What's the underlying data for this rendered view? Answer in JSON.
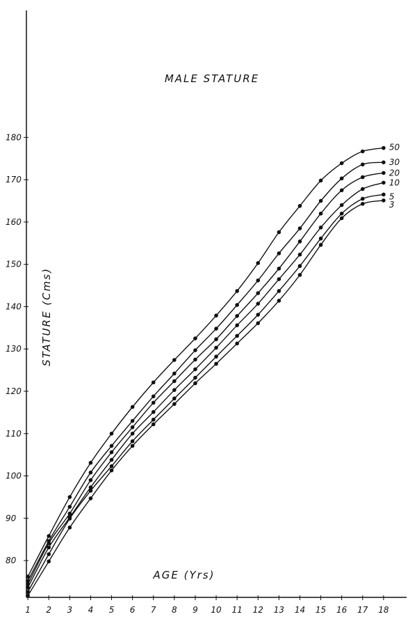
{
  "chart_data": {
    "type": "line",
    "title": "MALE STATURE",
    "x_label": "AGE (Yrs)",
    "y_label": "STATURE (Cms)",
    "x": [
      1,
      2,
      3,
      4,
      5,
      6,
      7,
      8,
      9,
      10,
      11,
      12,
      13,
      14,
      15,
      16,
      17,
      18
    ],
    "xlim": [
      0.93,
      19.1
    ],
    "xticks": [
      1,
      2,
      3,
      4,
      5,
      6,
      7,
      8,
      9,
      10,
      11,
      12,
      13,
      14,
      15,
      16,
      17,
      18
    ],
    "ylim": [
      71.3,
      210
    ],
    "yticks": [
      80,
      90,
      100,
      110,
      120,
      130,
      140,
      150,
      160,
      170,
      180
    ],
    "grid": false,
    "series": [
      {
        "name": "50",
        "color": "#111111",
        "values": [
          76.2,
          85.8,
          95,
          103.1,
          110,
          116.3,
          122.1,
          127.4,
          132.5,
          137.9,
          143.7,
          150.3,
          157.6,
          163.8,
          169.8,
          173.9,
          176.7,
          177.5
        ]
      },
      {
        "name": "30",
        "color": "#111111",
        "values": [
          75.2,
          84.6,
          92.7,
          100.8,
          107.1,
          113,
          118.8,
          124.2,
          129.7,
          134.8,
          140.4,
          146.2,
          152.6,
          158.5,
          165,
          170.3,
          173.6,
          174.1
        ]
      },
      {
        "name": "20",
        "color": "#111111",
        "values": [
          74.4,
          84.1,
          91.1,
          99,
          105.6,
          111.5,
          117.3,
          122.4,
          127.5,
          132.3,
          137.8,
          143.2,
          149,
          155.4,
          162,
          167.5,
          170.6,
          171.6
        ]
      },
      {
        "name": "10",
        "color": "#111111",
        "values": [
          73.6,
          83.1,
          90.2,
          97.3,
          103.8,
          110,
          115.1,
          120.3,
          125.2,
          130.3,
          135.6,
          140.7,
          146.5,
          152.3,
          158.7,
          164,
          167.8,
          169.3
        ]
      },
      {
        "name": "5",
        "color": "#111111",
        "values": [
          72.6,
          81.5,
          89.9,
          96.5,
          102.3,
          108.2,
          113.3,
          118.3,
          123.2,
          128.2,
          133.1,
          138.1,
          143.7,
          149.6,
          156.1,
          162,
          165.5,
          166.5
        ]
      },
      {
        "name": "3",
        "color": "#111111",
        "values": [
          71.7,
          79.8,
          87.8,
          94.7,
          101.3,
          107.1,
          112.2,
          117,
          121.9,
          126.5,
          131.3,
          136.1,
          141.4,
          147.5,
          154.6,
          160.9,
          164.3,
          165.1
        ]
      }
    ]
  }
}
